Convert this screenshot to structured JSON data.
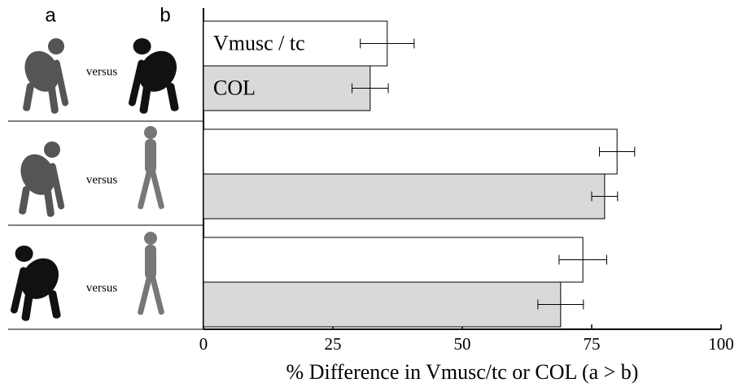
{
  "chart_data": {
    "type": "bar",
    "orientation": "horizontal",
    "column_labels": [
      "a",
      "b"
    ],
    "categories": [
      "versus",
      "versus",
      "versus"
    ],
    "series": [
      {
        "name": "Vmusc / tc",
        "color": "#ffffff",
        "values": [
          35.5,
          79.9,
          73.3
        ],
        "errors": [
          5.2,
          3.4,
          4.6
        ]
      },
      {
        "name": "COL",
        "color": "#d9d9d9",
        "values": [
          32.2,
          77.5,
          69.0
        ],
        "errors": [
          3.5,
          2.5,
          4.4
        ]
      }
    ],
    "xlim": [
      0,
      100
    ],
    "xticks": [
      0,
      25,
      50,
      75,
      100
    ],
    "xlabel": "% Difference in Vmusc/tc or COL (a > b)"
  }
}
